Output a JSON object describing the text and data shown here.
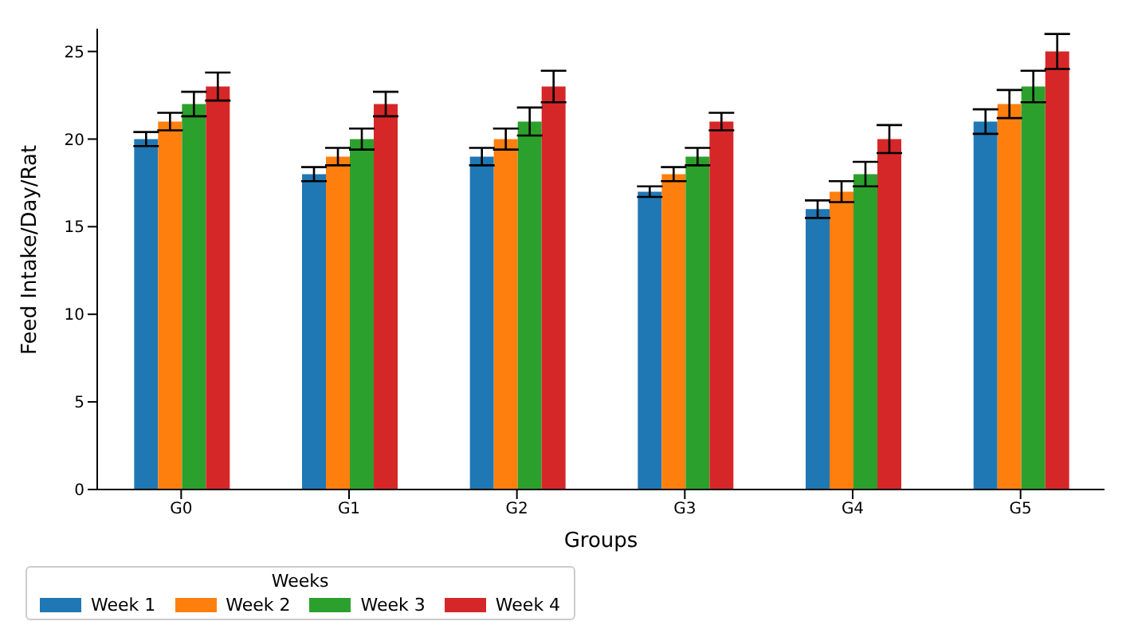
{
  "chart_data": {
    "type": "bar",
    "xlabel": "Groups",
    "ylabel": "Feed Intake/Day/Rat",
    "legend_title": "Weeks",
    "legend": "bottom",
    "categories": [
      "G0",
      "G1",
      "G2",
      "G3",
      "G4",
      "G5"
    ],
    "ylim": [
      0,
      26.3
    ],
    "yticks": [
      0,
      5,
      10,
      15,
      20,
      25
    ],
    "series": [
      {
        "name": "Week 1",
        "color": "#1f77b4",
        "values": [
          20,
          18,
          19,
          17,
          16,
          21
        ],
        "errors": [
          0.4,
          0.4,
          0.5,
          0.3,
          0.5,
          0.7
        ]
      },
      {
        "name": "Week 2",
        "color": "#ff7f0e",
        "values": [
          21,
          19,
          20,
          18,
          17,
          22
        ],
        "errors": [
          0.5,
          0.5,
          0.6,
          0.4,
          0.6,
          0.8
        ]
      },
      {
        "name": "Week 3",
        "color": "#2ca02c",
        "values": [
          22,
          20,
          21,
          19,
          18,
          23
        ],
        "errors": [
          0.7,
          0.6,
          0.8,
          0.5,
          0.7,
          0.9
        ]
      },
      {
        "name": "Week 4",
        "color": "#d62728",
        "values": [
          23,
          22,
          23,
          21,
          20,
          25
        ],
        "errors": [
          0.8,
          0.7,
          0.9,
          0.5,
          0.8,
          1.0
        ]
      }
    ]
  }
}
